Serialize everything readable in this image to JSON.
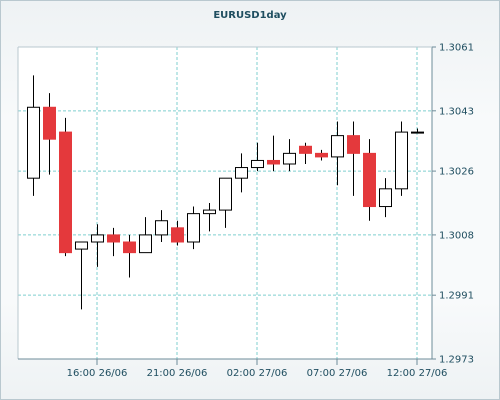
{
  "chart_data": {
    "type": "candlestick",
    "title": "EURUSD1day",
    "ylim": [
      1.2973,
      1.3061
    ],
    "y_ticks": [
      "1.3061",
      "1.3043",
      "1.3026",
      "1.3008",
      "1.2991",
      "1.2973"
    ],
    "x_ticks": [
      "16:00 26/06",
      "21:00 26/06",
      "02:00 27/06",
      "07:00 27/06",
      "12:00 27/06"
    ],
    "grid": true,
    "colors": {
      "bull_fill": "#ffffff",
      "bear_fill": "#e4393c",
      "outline": "#000000",
      "grid": "#7fcfcf"
    },
    "series": [
      {
        "open": 1.3024,
        "high": 1.3053,
        "low": 1.3019,
        "close": 1.3044
      },
      {
        "open": 1.3044,
        "high": 1.3048,
        "low": 1.3025,
        "close": 1.3035
      },
      {
        "open": 1.3037,
        "high": 1.3041,
        "low": 1.3002,
        "close": 1.3003
      },
      {
        "open": 1.3004,
        "high": 1.3006,
        "low": 1.2987,
        "close": 1.3006
      },
      {
        "open": 1.3006,
        "high": 1.3011,
        "low": 1.2999,
        "close": 1.3008
      },
      {
        "open": 1.3008,
        "high": 1.301,
        "low": 1.3002,
        "close": 1.3006
      },
      {
        "open": 1.3006,
        "high": 1.3008,
        "low": 1.2996,
        "close": 1.3003
      },
      {
        "open": 1.3003,
        "high": 1.3013,
        "low": 1.3003,
        "close": 1.3008
      },
      {
        "open": 1.3008,
        "high": 1.3015,
        "low": 1.3006,
        "close": 1.3012
      },
      {
        "open": 1.301,
        "high": 1.3012,
        "low": 1.3005,
        "close": 1.3006
      },
      {
        "open": 1.3006,
        "high": 1.3016,
        "low": 1.3004,
        "close": 1.3014
      },
      {
        "open": 1.3014,
        "high": 1.3017,
        "low": 1.3009,
        "close": 1.3015
      },
      {
        "open": 1.3015,
        "high": 1.3024,
        "low": 1.301,
        "close": 1.3024
      },
      {
        "open": 1.3024,
        "high": 1.3031,
        "low": 1.302,
        "close": 1.3027
      },
      {
        "open": 1.3027,
        "high": 1.3034,
        "low": 1.3026,
        "close": 1.3029
      },
      {
        "open": 1.3029,
        "high": 1.3036,
        "low": 1.3026,
        "close": 1.3028
      },
      {
        "open": 1.3028,
        "high": 1.3035,
        "low": 1.3026,
        "close": 1.3031
      },
      {
        "open": 1.3033,
        "high": 1.3034,
        "low": 1.3028,
        "close": 1.3031
      },
      {
        "open": 1.3031,
        "high": 1.3032,
        "low": 1.3029,
        "close": 1.303
      },
      {
        "open": 1.303,
        "high": 1.304,
        "low": 1.3022,
        "close": 1.3036
      },
      {
        "open": 1.3036,
        "high": 1.304,
        "low": 1.3019,
        "close": 1.3031
      },
      {
        "open": 1.3031,
        "high": 1.3035,
        "low": 1.3012,
        "close": 1.3016
      },
      {
        "open": 1.3016,
        "high": 1.3024,
        "low": 1.3013,
        "close": 1.3021
      },
      {
        "open": 1.3021,
        "high": 1.304,
        "low": 1.3019,
        "close": 1.3037
      },
      {
        "open": 1.3037,
        "high": 1.3038,
        "low": 1.3037,
        "close": 1.3037
      }
    ]
  }
}
